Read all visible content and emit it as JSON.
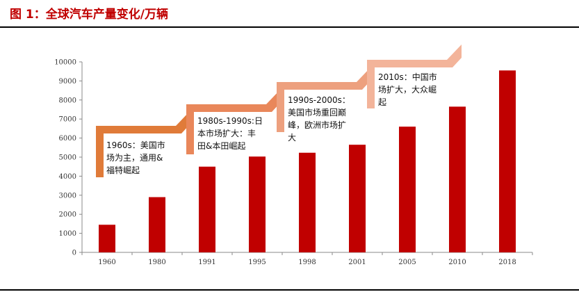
{
  "figure_title": "图 1：全球汽车产量变化/万辆",
  "colors": {
    "bar": "#c00000",
    "title": "#c00000",
    "ann1": "#e07b39",
    "ann2": "#e9875a",
    "ann3": "#eda07e",
    "ann4": "#f3b49a"
  },
  "chart_data": {
    "type": "bar",
    "categories": [
      "1960",
      "1980",
      "1991",
      "1995",
      "1998",
      "2001",
      "2005",
      "2010",
      "2018"
    ],
    "values": [
      1450,
      2900,
      4500,
      5030,
      5230,
      5650,
      6600,
      7650,
      9550
    ],
    "ylim": [
      0,
      10000
    ],
    "yticks": [
      0,
      1000,
      2000,
      3000,
      4000,
      5000,
      6000,
      7000,
      8000,
      9000,
      10000
    ],
    "grid": false,
    "annotations": [
      {
        "text": "1960s：美国市\n场为主，通用&\n福特崛起"
      },
      {
        "text": "1980s-1990s:日\n本市场扩大：丰\n田&本田崛起"
      },
      {
        "text": "1990s-2000s：\n美国市场重回巅\n峰，欧洲市场扩\n大"
      },
      {
        "text": "2010s：中国市\n场扩大，大众崛\n起"
      }
    ]
  }
}
